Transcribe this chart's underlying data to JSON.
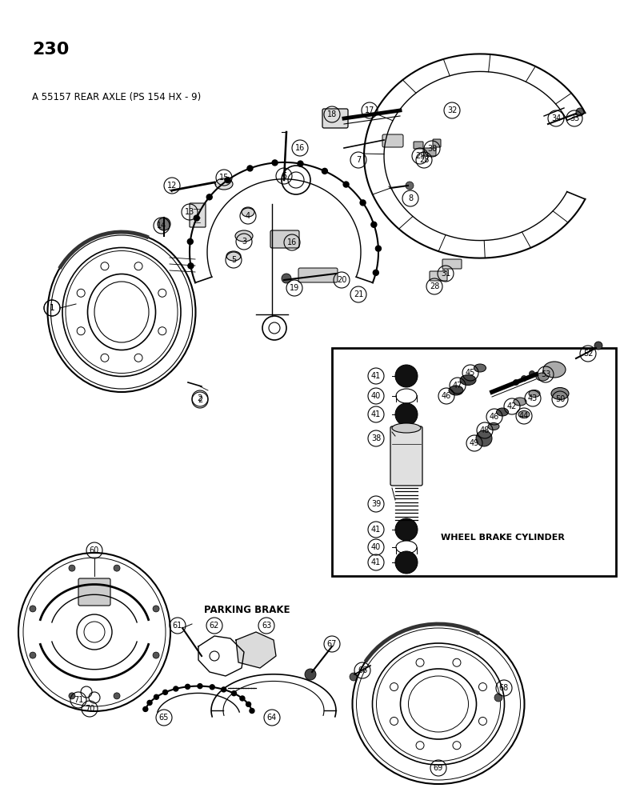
{
  "page_number": "230",
  "title_text": "A 55157 REAR AXLE (PS 154 HX - 9)",
  "parking_brake_label": "PARKING BRAKE",
  "wheel_brake_cylinder_label": "WHEEL BRAKE CYLINDER",
  "bg_color": "#ffffff",
  "line_color": "#000000",
  "fig_width": 7.8,
  "fig_height": 10.0,
  "dpi": 100
}
